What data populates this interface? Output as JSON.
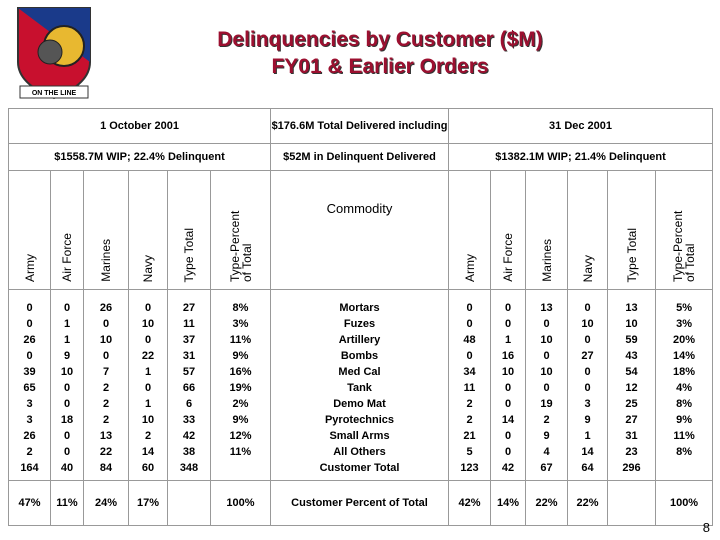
{
  "header": {
    "title": "Delinquencies by Customer ($M)",
    "subtitle": "FY01 & Earlier Orders",
    "logo_text": "ON THE LINE"
  },
  "table": {
    "top": [
      "1 October 2001",
      "$176.6M Total Delivered including",
      "31 Dec 2001"
    ],
    "summary": [
      "$1558.7M WIP; 22.4% Delinquent",
      "$52M in Delinquent Delivered",
      "$1382.1M WIP; 21.4% Delinquent"
    ],
    "columns": [
      "Army",
      "Air Force",
      "Marines",
      "Navy",
      "Type Total",
      "Type-Percent of Total",
      "Commodity",
      "Army",
      "Air Force",
      "Marines",
      "Navy",
      "Type Total",
      "Type-Percent of Total"
    ],
    "rows": [
      [
        "0",
        "0",
        "26",
        "0",
        "27",
        "8%",
        "Mortars",
        "0",
        "0",
        "13",
        "0",
        "13",
        "5%"
      ],
      [
        "0",
        "1",
        "0",
        "10",
        "11",
        "3%",
        "Fuzes",
        "0",
        "0",
        "0",
        "10",
        "10",
        "3%"
      ],
      [
        "26",
        "1",
        "10",
        "0",
        "37",
        "11%",
        "Artillery",
        "48",
        "1",
        "10",
        "0",
        "59",
        "20%"
      ],
      [
        "0",
        "9",
        "0",
        "22",
        "31",
        "9%",
        "Bombs",
        "0",
        "16",
        "0",
        "27",
        "43",
        "14%"
      ],
      [
        "39",
        "10",
        "7",
        "1",
        "57",
        "16%",
        "Med Cal",
        "34",
        "10",
        "10",
        "0",
        "54",
        "18%"
      ],
      [
        "65",
        "0",
        "2",
        "0",
        "66",
        "19%",
        "Tank",
        "11",
        "0",
        "0",
        "0",
        "12",
        "4%"
      ],
      [
        "3",
        "0",
        "2",
        "1",
        "6",
        "2%",
        "Demo Mat",
        "2",
        "0",
        "19",
        "3",
        "25",
        "8%"
      ],
      [
        "3",
        "18",
        "2",
        "10",
        "33",
        "9%",
        "Pyrotechnics",
        "2",
        "14",
        "2",
        "9",
        "27",
        "9%"
      ],
      [
        "26",
        "0",
        "13",
        "2",
        "42",
        "12%",
        "Small Arms",
        "21",
        "0",
        "9",
        "1",
        "31",
        "11%"
      ],
      [
        "2",
        "0",
        "22",
        "14",
        "38",
        "11%",
        "All Others",
        "5",
        "0",
        "4",
        "14",
        "23",
        "8%"
      ],
      [
        "164",
        "40",
        "84",
        "60",
        "348",
        null,
        "Customer Total",
        "123",
        "42",
        "67",
        "64",
        "296",
        null
      ]
    ],
    "percent_row": [
      "47%",
      "11%",
      "24%",
      "17%",
      null,
      "100%",
      "Customer Percent of Total",
      "42%",
      "14%",
      "22%",
      "22%",
      null,
      "100%"
    ]
  },
  "page_number": "8"
}
